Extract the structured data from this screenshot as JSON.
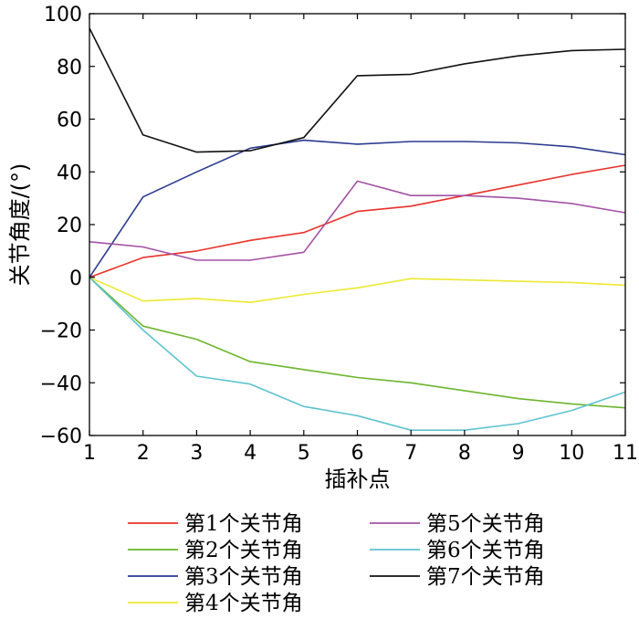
{
  "chart_data": {
    "type": "line",
    "xlabel": "插补点",
    "ylabel": "关节角度/(°)",
    "xlim": [
      1,
      11
    ],
    "ylim": [
      -60,
      100
    ],
    "x_ticks": [
      1,
      2,
      3,
      4,
      5,
      6,
      7,
      8,
      9,
      10,
      11
    ],
    "y_ticks": [
      -60,
      -40,
      -20,
      0,
      20,
      40,
      60,
      80,
      100
    ],
    "grid": false,
    "legend_position": "bottom",
    "x": [
      1,
      2,
      3,
      4,
      5,
      6,
      7,
      8,
      9,
      10,
      11
    ],
    "series": [
      {
        "name": "第1个关节角",
        "color": "#e8322b",
        "values": [
          0,
          7.5,
          10,
          14,
          17,
          25,
          27,
          31,
          35,
          39,
          42.5
        ]
      },
      {
        "name": "第2个关节角",
        "color": "#6cb52d",
        "values": [
          0,
          -18.5,
          -23.5,
          -32,
          -35,
          -38,
          -40,
          -43,
          -46,
          -48,
          -49.5
        ]
      },
      {
        "name": "第3个关节角",
        "color": "#2b3a8f",
        "values": [
          0,
          30.5,
          40,
          49,
          52,
          50.5,
          51.5,
          51.5,
          51,
          49.5,
          46.5
        ]
      },
      {
        "name": "第4个关节角",
        "color": "#ede832",
        "values": [
          0,
          -9,
          -8,
          -9.5,
          -6.5,
          -4,
          -0.5,
          -1,
          -1.5,
          -2,
          -3
        ]
      },
      {
        "name": "第5个关节角",
        "color": "#a352a3",
        "values": [
          13.5,
          11.5,
          6.5,
          6.5,
          9.5,
          36.5,
          31,
          31,
          30,
          28,
          24.5
        ]
      },
      {
        "name": "第6个关节角",
        "color": "#5ec3cf",
        "values": [
          0,
          -20,
          -37.5,
          -40.5,
          -49,
          -52.5,
          -58,
          -58,
          -55.5,
          -50.5,
          -43.5
        ]
      },
      {
        "name": "第7个关节角",
        "color": "#111111",
        "values": [
          94.5,
          54,
          47.5,
          48,
          53,
          76.5,
          77,
          81,
          84,
          86,
          86.5
        ]
      }
    ]
  }
}
